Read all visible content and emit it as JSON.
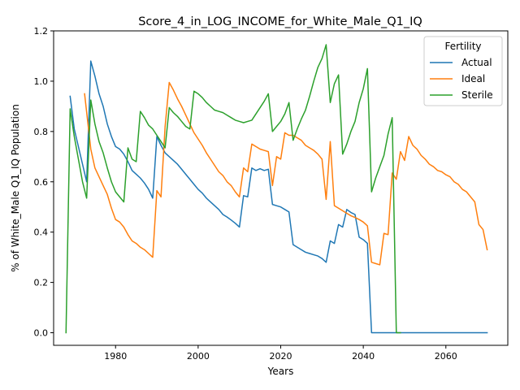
{
  "chart_data": {
    "type": "line",
    "title": "Score_4_in_LOG_INCOME_for_White_Male_Q1_IQ",
    "xlabel": "Years",
    "ylabel": "% of White_Male Q1_IQ Population",
    "xlim": [
      1965,
      2075
    ],
    "ylim": [
      -0.05,
      1.2
    ],
    "x_ticks": [
      1980,
      2000,
      2020,
      2040,
      2060
    ],
    "y_ticks": [
      0.0,
      0.2,
      0.4,
      0.6,
      0.8,
      1.0,
      1.2
    ],
    "x_tick_labels": [
      "1980",
      "2000",
      "2020",
      "2040",
      "2060"
    ],
    "y_tick_labels": [
      "0.0",
      "0.2",
      "0.4",
      "0.6",
      "0.8",
      "1.0",
      "1.2"
    ],
    "grid": false,
    "legend": {
      "title": "Fertility",
      "placement": "top-right"
    },
    "series": [
      {
        "name": "Actual",
        "color": "#1f77b4",
        "points": [
          [
            1969,
            0.94
          ],
          [
            1970,
            0.81
          ],
          [
            1973,
            0.6
          ],
          [
            1974,
            1.08
          ],
          [
            1975,
            1.02
          ],
          [
            1976,
            0.95
          ],
          [
            1977,
            0.9
          ],
          [
            1978,
            0.83
          ],
          [
            1979,
            0.78
          ],
          [
            1980,
            0.74
          ],
          [
            1981,
            0.73
          ],
          [
            1982,
            0.71
          ],
          [
            1983,
            0.68
          ],
          [
            1984,
            0.645
          ],
          [
            1985,
            0.63
          ],
          [
            1986,
            0.615
          ],
          [
            1987,
            0.595
          ],
          [
            1988,
            0.57
          ],
          [
            1989,
            0.535
          ],
          [
            1990,
            0.78
          ],
          [
            1991,
            0.745
          ],
          [
            1992,
            0.715
          ],
          [
            1993,
            0.7
          ],
          [
            1994,
            0.685
          ],
          [
            1995,
            0.67
          ],
          [
            1996,
            0.65
          ],
          [
            1997,
            0.63
          ],
          [
            1998,
            0.61
          ],
          [
            1999,
            0.59
          ],
          [
            2000,
            0.57
          ],
          [
            2001,
            0.555
          ],
          [
            2002,
            0.535
          ],
          [
            2003,
            0.52
          ],
          [
            2004,
            0.505
          ],
          [
            2005,
            0.49
          ],
          [
            2006,
            0.47
          ],
          [
            2007,
            0.46
          ],
          [
            2008,
            0.448
          ],
          [
            2009,
            0.435
          ],
          [
            2010,
            0.42
          ],
          [
            2011,
            0.545
          ],
          [
            2012,
            0.54
          ],
          [
            2013,
            0.655
          ],
          [
            2014,
            0.645
          ],
          [
            2015,
            0.652
          ],
          [
            2016,
            0.645
          ],
          [
            2017,
            0.65
          ],
          [
            2018,
            0.51
          ],
          [
            2019,
            0.505
          ],
          [
            2020,
            0.5
          ],
          [
            2021,
            0.49
          ],
          [
            2022,
            0.48
          ],
          [
            2023,
            0.35
          ],
          [
            2024,
            0.34
          ],
          [
            2025,
            0.33
          ],
          [
            2026,
            0.32
          ],
          [
            2027,
            0.315
          ],
          [
            2028,
            0.31
          ],
          [
            2029,
            0.305
          ],
          [
            2030,
            0.295
          ],
          [
            2031,
            0.28
          ],
          [
            2032,
            0.365
          ],
          [
            2033,
            0.355
          ],
          [
            2034,
            0.43
          ],
          [
            2035,
            0.42
          ],
          [
            2036,
            0.49
          ],
          [
            2037,
            0.478
          ],
          [
            2038,
            0.47
          ],
          [
            2039,
            0.38
          ],
          [
            2040,
            0.37
          ],
          [
            2041,
            0.355
          ],
          [
            2042,
            0.0
          ],
          [
            2070,
            0.0
          ]
        ]
      },
      {
        "name": "Ideal",
        "color": "#ff7f0e",
        "points": [
          [
            1972.5,
            0.95
          ],
          [
            1974,
            0.73
          ],
          [
            1975,
            0.655
          ],
          [
            1976,
            0.62
          ],
          [
            1977,
            0.585
          ],
          [
            1978,
            0.55
          ],
          [
            1979,
            0.495
          ],
          [
            1980,
            0.45
          ],
          [
            1981,
            0.44
          ],
          [
            1982,
            0.42
          ],
          [
            1983,
            0.39
          ],
          [
            1984,
            0.365
          ],
          [
            1985,
            0.355
          ],
          [
            1986,
            0.34
          ],
          [
            1987,
            0.33
          ],
          [
            1988,
            0.315
          ],
          [
            1989,
            0.3
          ],
          [
            1990,
            0.565
          ],
          [
            1991,
            0.54
          ],
          [
            1992,
            0.82
          ],
          [
            1993,
            0.995
          ],
          [
            1994,
            0.965
          ],
          [
            1995,
            0.93
          ],
          [
            1996,
            0.9
          ],
          [
            1997,
            0.865
          ],
          [
            1998,
            0.83
          ],
          [
            1999,
            0.795
          ],
          [
            2000,
            0.77
          ],
          [
            2001,
            0.745
          ],
          [
            2002,
            0.715
          ],
          [
            2003,
            0.69
          ],
          [
            2004,
            0.665
          ],
          [
            2005,
            0.64
          ],
          [
            2006,
            0.625
          ],
          [
            2007,
            0.6
          ],
          [
            2008,
            0.585
          ],
          [
            2009,
            0.56
          ],
          [
            2010,
            0.54
          ],
          [
            2011,
            0.655
          ],
          [
            2012,
            0.64
          ],
          [
            2013,
            0.75
          ],
          [
            2014,
            0.74
          ],
          [
            2015,
            0.73
          ],
          [
            2016,
            0.725
          ],
          [
            2017,
            0.72
          ],
          [
            2018,
            0.585
          ],
          [
            2019,
            0.7
          ],
          [
            2020,
            0.69
          ],
          [
            2021,
            0.795
          ],
          [
            2022,
            0.785
          ],
          [
            2023,
            0.785
          ],
          [
            2024,
            0.775
          ],
          [
            2025,
            0.765
          ],
          [
            2026,
            0.745
          ],
          [
            2027,
            0.735
          ],
          [
            2028,
            0.725
          ],
          [
            2029,
            0.71
          ],
          [
            2030,
            0.69
          ],
          [
            2031,
            0.53
          ],
          [
            2032,
            0.76
          ],
          [
            2033,
            0.505
          ],
          [
            2034,
            0.495
          ],
          [
            2035,
            0.485
          ],
          [
            2036,
            0.475
          ],
          [
            2037,
            0.465
          ],
          [
            2038,
            0.458
          ],
          [
            2039,
            0.45
          ],
          [
            2040,
            0.44
          ],
          [
            2041,
            0.425
          ],
          [
            2042,
            0.28
          ],
          [
            2043,
            0.275
          ],
          [
            2044,
            0.27
          ],
          [
            2045,
            0.395
          ],
          [
            2046,
            0.39
          ],
          [
            2047,
            0.635
          ],
          [
            2048,
            0.61
          ],
          [
            2049,
            0.72
          ],
          [
            2050,
            0.685
          ],
          [
            2051,
            0.78
          ],
          [
            2052,
            0.745
          ],
          [
            2053,
            0.73
          ],
          [
            2054,
            0.705
          ],
          [
            2055,
            0.69
          ],
          [
            2056,
            0.67
          ],
          [
            2057,
            0.66
          ],
          [
            2058,
            0.645
          ],
          [
            2059,
            0.64
          ],
          [
            2060,
            0.628
          ],
          [
            2061,
            0.62
          ],
          [
            2062,
            0.6
          ],
          [
            2063,
            0.59
          ],
          [
            2064,
            0.57
          ],
          [
            2065,
            0.56
          ],
          [
            2066,
            0.54
          ],
          [
            2067,
            0.52
          ],
          [
            2068,
            0.43
          ],
          [
            2069,
            0.41
          ],
          [
            2070,
            0.33
          ]
        ]
      },
      {
        "name": "Sterile",
        "color": "#2ca02c",
        "points": [
          [
            1968,
            0.0
          ],
          [
            1969,
            0.89
          ],
          [
            1970,
            0.78
          ],
          [
            1971,
            0.69
          ],
          [
            1972,
            0.6
          ],
          [
            1973,
            0.535
          ],
          [
            1974,
            0.925
          ],
          [
            1975,
            0.83
          ],
          [
            1976,
            0.76
          ],
          [
            1977,
            0.715
          ],
          [
            1978,
            0.655
          ],
          [
            1979,
            0.6
          ],
          [
            1980,
            0.56
          ],
          [
            1981,
            0.54
          ],
          [
            1982,
            0.52
          ],
          [
            1983,
            0.735
          ],
          [
            1984,
            0.69
          ],
          [
            1985,
            0.68
          ],
          [
            1986,
            0.88
          ],
          [
            1987,
            0.855
          ],
          [
            1988,
            0.825
          ],
          [
            1989,
            0.81
          ],
          [
            1990,
            0.785
          ],
          [
            1991,
            0.76
          ],
          [
            1992,
            0.735
          ],
          [
            1993,
            0.895
          ],
          [
            1994,
            0.875
          ],
          [
            1995,
            0.86
          ],
          [
            1996,
            0.84
          ],
          [
            1997,
            0.82
          ],
          [
            1998,
            0.81
          ],
          [
            1999,
            0.96
          ],
          [
            2000,
            0.95
          ],
          [
            2001,
            0.935
          ],
          [
            2002,
            0.915
          ],
          [
            2003,
            0.9
          ],
          [
            2004,
            0.885
          ],
          [
            2005,
            0.88
          ],
          [
            2006,
            0.875
          ],
          [
            2007,
            0.865
          ],
          [
            2008,
            0.855
          ],
          [
            2009,
            0.845
          ],
          [
            2010,
            0.84
          ],
          [
            2011,
            0.835
          ],
          [
            2012,
            0.84
          ],
          [
            2013,
            0.845
          ],
          [
            2014,
            0.87
          ],
          [
            2015,
            0.895
          ],
          [
            2016,
            0.92
          ],
          [
            2017,
            0.95
          ],
          [
            2018,
            0.8
          ],
          [
            2019,
            0.82
          ],
          [
            2020,
            0.84
          ],
          [
            2021,
            0.87
          ],
          [
            2022,
            0.915
          ],
          [
            2023,
            0.765
          ],
          [
            2024,
            0.81
          ],
          [
            2025,
            0.85
          ],
          [
            2026,
            0.885
          ],
          [
            2027,
            0.94
          ],
          [
            2028,
            1.0
          ],
          [
            2029,
            1.055
          ],
          [
            2030,
            1.09
          ],
          [
            2031,
            1.145
          ],
          [
            2032,
            0.915
          ],
          [
            2033,
            0.99
          ],
          [
            2034,
            1.025
          ],
          [
            2035,
            0.71
          ],
          [
            2036,
            0.75
          ],
          [
            2037,
            0.8
          ],
          [
            2038,
            0.84
          ],
          [
            2039,
            0.915
          ],
          [
            2040,
            0.97
          ],
          [
            2041,
            1.05
          ],
          [
            2042,
            0.56
          ],
          [
            2043,
            0.615
          ],
          [
            2044,
            0.66
          ],
          [
            2045,
            0.705
          ],
          [
            2046,
            0.79
          ],
          [
            2047,
            0.855
          ],
          [
            2048,
            0.0
          ],
          [
            2049,
            0.0
          ]
        ]
      }
    ]
  }
}
